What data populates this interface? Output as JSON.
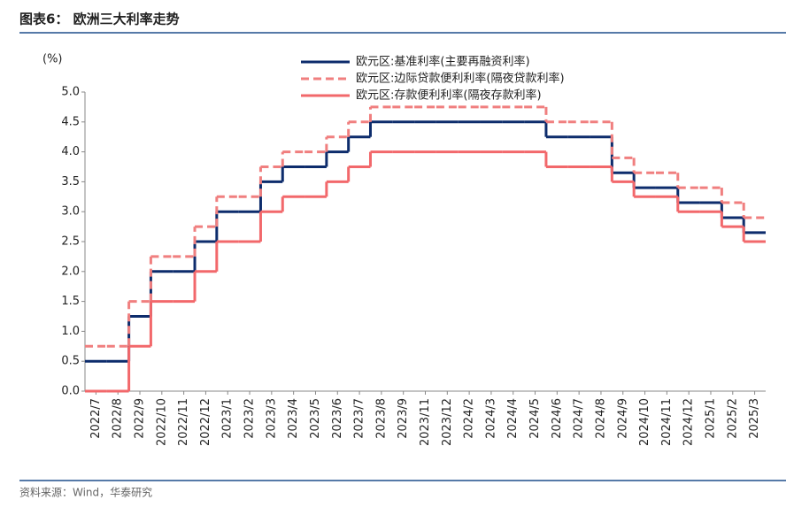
{
  "header": {
    "title": "图表6：  欧洲三大利率走势"
  },
  "chart_data": {
    "type": "step-line",
    "unit_label": "(%)",
    "categories": [
      "2022/7",
      "2022/8",
      "2022/9",
      "2022/10",
      "2022/11",
      "2022/12",
      "2023/1",
      "2023/2",
      "2023/3",
      "2023/4",
      "2023/5",
      "2023/6",
      "2023/7",
      "2023/8",
      "2023/9",
      "2023/11",
      "2023/12",
      "2024/2",
      "2024/3",
      "2024/4",
      "2024/5",
      "2024/6",
      "2024/7",
      "2024/8",
      "2024/9",
      "2024/10",
      "2024/11",
      "2024/12",
      "2025/1",
      "2025/2",
      "2025/3"
    ],
    "series": [
      {
        "name": "欧元区:基准利率(主要再融资利率)",
        "color": "#0d2c6c",
        "dash": false,
        "values": [
          0.5,
          0.5,
          1.25,
          2.0,
          2.0,
          2.5,
          3.0,
          3.0,
          3.5,
          3.75,
          3.75,
          4.0,
          4.25,
          4.5,
          4.5,
          4.5,
          4.5,
          4.5,
          4.5,
          4.5,
          4.5,
          4.25,
          4.25,
          4.25,
          3.65,
          3.4,
          3.4,
          3.15,
          3.15,
          2.9,
          2.65
        ]
      },
      {
        "name": "欧元区:边际贷款便利利率(隔夜贷款利率)",
        "color": "#f07f7f",
        "dash": true,
        "values": [
          0.75,
          0.75,
          1.5,
          2.25,
          2.25,
          2.75,
          3.25,
          3.25,
          3.75,
          4.0,
          4.0,
          4.25,
          4.5,
          4.75,
          4.75,
          4.75,
          4.75,
          4.75,
          4.75,
          4.75,
          4.75,
          4.5,
          4.5,
          4.5,
          3.9,
          3.65,
          3.65,
          3.4,
          3.4,
          3.15,
          2.9
        ]
      },
      {
        "name": "欧元区:存款便利利率(隔夜存款利率)",
        "color": "#f2686b",
        "dash": false,
        "values": [
          0,
          0,
          0.75,
          1.5,
          1.5,
          2.0,
          2.5,
          2.5,
          3.0,
          3.25,
          3.25,
          3.5,
          3.75,
          4.0,
          4.0,
          4.0,
          4.0,
          4.0,
          4.0,
          4.0,
          4.0,
          3.75,
          3.75,
          3.75,
          3.5,
          3.25,
          3.25,
          3.0,
          3.0,
          2.75,
          2.5
        ]
      }
    ],
    "ylim": [
      0,
      5
    ],
    "yticks": [
      {
        "value": 0,
        "label": "0.0"
      },
      {
        "value": 0.5,
        "label": "0.5"
      },
      {
        "value": 1,
        "label": "1.0"
      },
      {
        "value": 1.5,
        "label": "1.5"
      },
      {
        "value": 2,
        "label": "2.0"
      },
      {
        "value": 2.5,
        "label": "2.5"
      },
      {
        "value": 3,
        "label": "3.0"
      },
      {
        "value": 3.5,
        "label": "3.5"
      },
      {
        "value": 4,
        "label": "4.0"
      },
      {
        "value": 4.5,
        "label": "4.5"
      },
      {
        "value": 5,
        "label": "5.0"
      }
    ],
    "grid": false,
    "legend": "top"
  },
  "footer": {
    "source": "资料来源：Wind，华泰研究"
  }
}
